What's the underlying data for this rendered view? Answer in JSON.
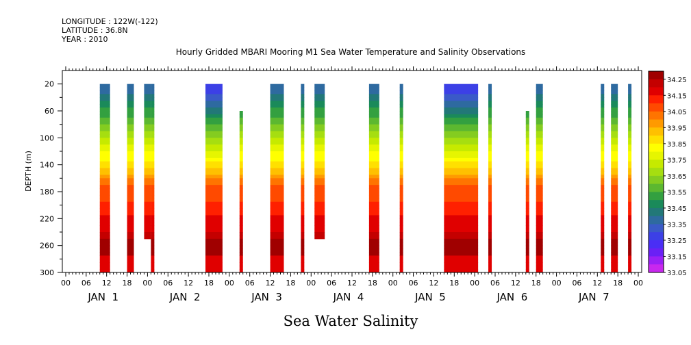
{
  "header": {
    "longitude": "LONGITUDE : 122W(-122)",
    "latitude": "LATITUDE : 36.8N",
    "year": "YEAR : 2010",
    "title": "Hourly Gridded MBARI Mooring M1 Sea Water Temperature and Salinity Observations"
  },
  "footer": {
    "caption": "Sea Water Salinity"
  },
  "chart_data": {
    "type": "heatmap",
    "title": "Hourly Gridded MBARI Mooring M1 Sea Water Temperature and Salinity Observations",
    "ylabel": "DEPTH (m)",
    "xlabel": "",
    "x_unit": "hours since 2010-01-01 00:00",
    "xlim": [
      -1,
      169
    ],
    "ylim": [
      300,
      0
    ],
    "y_ticks": [
      20,
      60,
      100,
      140,
      180,
      220,
      260,
      300
    ],
    "x_hour_ticks": [
      "00",
      "06",
      "12",
      "18",
      "00",
      "06",
      "12",
      "18",
      "00",
      "06",
      "12",
      "18",
      "00",
      "06",
      "12",
      "18",
      "00",
      "06",
      "12",
      "18",
      "00",
      "06",
      "12",
      "18",
      "00",
      "06",
      "12",
      "18",
      "00"
    ],
    "x_day_labels": [
      "JAN  1",
      "JAN  2",
      "JAN  3",
      "JAN  4",
      "JAN  5",
      "JAN  6",
      "JAN  7"
    ],
    "colorbar": {
      "levels": [
        "34.25",
        "34.15",
        "34.05",
        "33.95",
        "33.85",
        "33.75",
        "33.65",
        "33.55",
        "33.45",
        "33.35",
        "33.25",
        "33.15",
        "33.05"
      ],
      "colors": [
        "#a00000",
        "#c40000",
        "#e00000",
        "#ff2000",
        "#ff4a00",
        "#ff7400",
        "#ff9a00",
        "#ffc000",
        "#ffe000",
        "#ffff00",
        "#e6f500",
        "#c6ea00",
        "#a6de10",
        "#84cc20",
        "#5cb830",
        "#33a040",
        "#1a8a5a",
        "#227878",
        "#2e6aa0",
        "#3a5ac8",
        "#3c40e6",
        "#4a2ef5",
        "#6a20f5",
        "#9a20f5",
        "#c828ee"
      ]
    },
    "segments": [
      {
        "start": 10,
        "end": 13,
        "top": 20,
        "bottom": 300,
        "profile": "typical"
      },
      {
        "start": 18,
        "end": 20,
        "top": 20,
        "bottom": 300,
        "profile": "typical"
      },
      {
        "start": 23,
        "end": 25,
        "top": 20,
        "bottom": 250,
        "profile": "typical"
      },
      {
        "start": 25,
        "end": 26,
        "top": 20,
        "bottom": 300,
        "profile": "typical"
      },
      {
        "start": 41,
        "end": 46,
        "top": 20,
        "bottom": 300,
        "profile": "fresh"
      },
      {
        "start": 51,
        "end": 52,
        "top": 60,
        "bottom": 300,
        "profile": "typical"
      },
      {
        "start": 60,
        "end": 64,
        "top": 20,
        "bottom": 300,
        "profile": "typical"
      },
      {
        "start": 69,
        "end": 70,
        "top": 20,
        "bottom": 300,
        "profile": "typical"
      },
      {
        "start": 73,
        "end": 76,
        "top": 20,
        "bottom": 250,
        "profile": "typical"
      },
      {
        "start": 89,
        "end": 92,
        "top": 20,
        "bottom": 300,
        "profile": "typical"
      },
      {
        "start": 98,
        "end": 99,
        "top": 20,
        "bottom": 300,
        "profile": "typical"
      },
      {
        "start": 111,
        "end": 121,
        "top": 20,
        "bottom": 300,
        "profile": "fresh"
      },
      {
        "start": 124,
        "end": 125,
        "top": 20,
        "bottom": 300,
        "profile": "typical"
      },
      {
        "start": 135,
        "end": 136,
        "top": 60,
        "bottom": 300,
        "profile": "typical"
      },
      {
        "start": 138,
        "end": 140,
        "top": 20,
        "bottom": 300,
        "profile": "typical"
      },
      {
        "start": 157,
        "end": 158,
        "top": 20,
        "bottom": 300,
        "profile": "typical"
      },
      {
        "start": 160,
        "end": 162,
        "top": 20,
        "bottom": 300,
        "profile": "typical"
      },
      {
        "start": 165,
        "end": 166,
        "top": 20,
        "bottom": 300,
        "profile": "typical"
      }
    ]
  }
}
